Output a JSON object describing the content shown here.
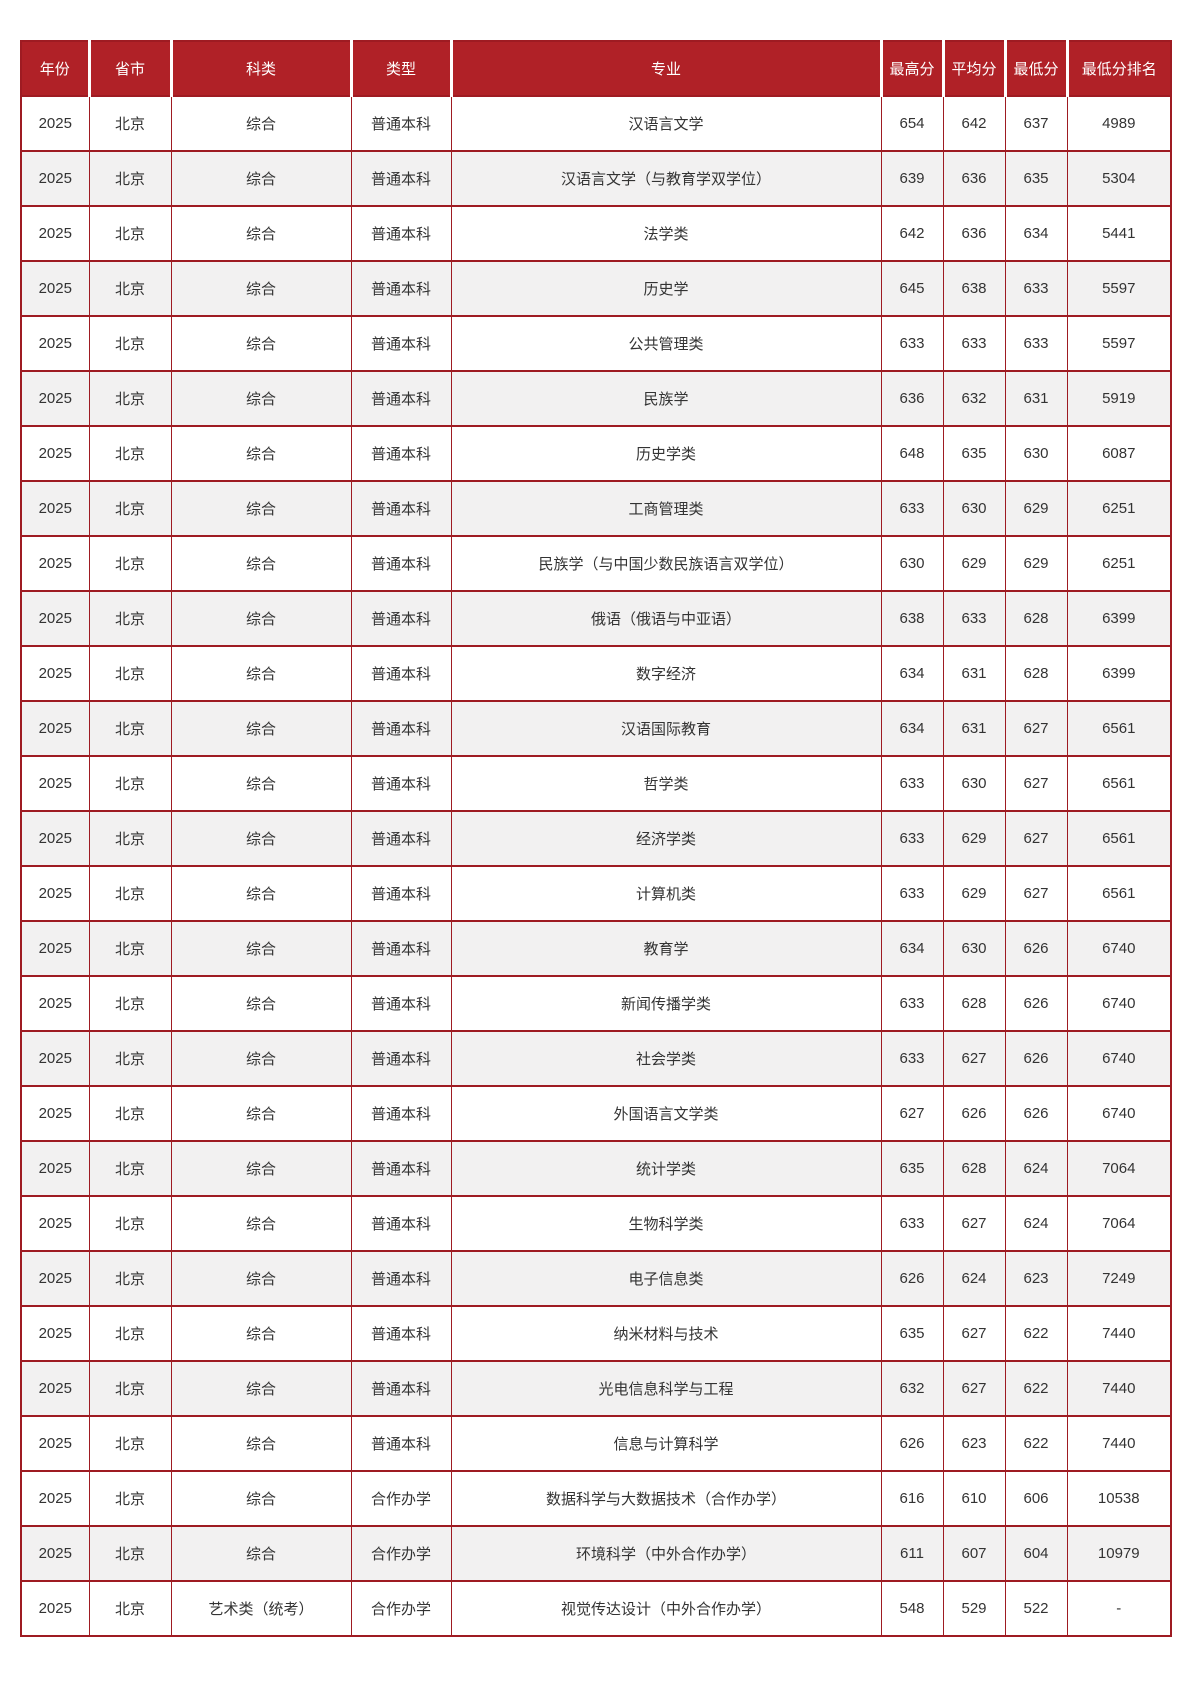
{
  "table": {
    "colors": {
      "header_bg": "#b02127",
      "header_text": "#ffffff",
      "border": "#9e1b22",
      "stripe": "#f2f1f1",
      "text": "#333333",
      "page_bg": "#ffffff"
    },
    "columns": [
      {
        "key": "year",
        "label": "年份"
      },
      {
        "key": "province",
        "label": "省市"
      },
      {
        "key": "category",
        "label": "科类"
      },
      {
        "key": "type",
        "label": "类型"
      },
      {
        "key": "major",
        "label": "专业"
      },
      {
        "key": "max_score",
        "label": "最高分"
      },
      {
        "key": "avg_score",
        "label": "平均分"
      },
      {
        "key": "min_score",
        "label": "最低分"
      },
      {
        "key": "min_rank",
        "label": "最低分排名"
      }
    ],
    "rows": [
      {
        "year": "2025",
        "province": "北京",
        "category": "综合",
        "type": "普通本科",
        "major": "汉语言文学",
        "max_score": "654",
        "avg_score": "642",
        "min_score": "637",
        "min_rank": "4989",
        "shaded": false
      },
      {
        "year": "2025",
        "province": "北京",
        "category": "综合",
        "type": "普通本科",
        "major": "汉语言文学（与教育学双学位）",
        "max_score": "639",
        "avg_score": "636",
        "min_score": "635",
        "min_rank": "5304",
        "shaded": true
      },
      {
        "year": "2025",
        "province": "北京",
        "category": "综合",
        "type": "普通本科",
        "major": "法学类",
        "max_score": "642",
        "avg_score": "636",
        "min_score": "634",
        "min_rank": "5441",
        "shaded": false
      },
      {
        "year": "2025",
        "province": "北京",
        "category": "综合",
        "type": "普通本科",
        "major": "历史学",
        "max_score": "645",
        "avg_score": "638",
        "min_score": "633",
        "min_rank": "5597",
        "shaded": true
      },
      {
        "year": "2025",
        "province": "北京",
        "category": "综合",
        "type": "普通本科",
        "major": "公共管理类",
        "max_score": "633",
        "avg_score": "633",
        "min_score": "633",
        "min_rank": "5597",
        "shaded": false
      },
      {
        "year": "2025",
        "province": "北京",
        "category": "综合",
        "type": "普通本科",
        "major": "民族学",
        "max_score": "636",
        "avg_score": "632",
        "min_score": "631",
        "min_rank": "5919",
        "shaded": true
      },
      {
        "year": "2025",
        "province": "北京",
        "category": "综合",
        "type": "普通本科",
        "major": "历史学类",
        "max_score": "648",
        "avg_score": "635",
        "min_score": "630",
        "min_rank": "6087",
        "shaded": false
      },
      {
        "year": "2025",
        "province": "北京",
        "category": "综合",
        "type": "普通本科",
        "major": "工商管理类",
        "max_score": "633",
        "avg_score": "630",
        "min_score": "629",
        "min_rank": "6251",
        "shaded": true
      },
      {
        "year": "2025",
        "province": "北京",
        "category": "综合",
        "type": "普通本科",
        "major": "民族学（与中国少数民族语言双学位）",
        "max_score": "630",
        "avg_score": "629",
        "min_score": "629",
        "min_rank": "6251",
        "shaded": false
      },
      {
        "year": "2025",
        "province": "北京",
        "category": "综合",
        "type": "普通本科",
        "major": "俄语（俄语与中亚语）",
        "max_score": "638",
        "avg_score": "633",
        "min_score": "628",
        "min_rank": "6399",
        "shaded": true
      },
      {
        "year": "2025",
        "province": "北京",
        "category": "综合",
        "type": "普通本科",
        "major": "数字经济",
        "max_score": "634",
        "avg_score": "631",
        "min_score": "628",
        "min_rank": "6399",
        "shaded": false
      },
      {
        "year": "2025",
        "province": "北京",
        "category": "综合",
        "type": "普通本科",
        "major": "汉语国际教育",
        "max_score": "634",
        "avg_score": "631",
        "min_score": "627",
        "min_rank": "6561",
        "shaded": true
      },
      {
        "year": "2025",
        "province": "北京",
        "category": "综合",
        "type": "普通本科",
        "major": "哲学类",
        "max_score": "633",
        "avg_score": "630",
        "min_score": "627",
        "min_rank": "6561",
        "shaded": false
      },
      {
        "year": "2025",
        "province": "北京",
        "category": "综合",
        "type": "普通本科",
        "major": "经济学类",
        "max_score": "633",
        "avg_score": "629",
        "min_score": "627",
        "min_rank": "6561",
        "shaded": true
      },
      {
        "year": "2025",
        "province": "北京",
        "category": "综合",
        "type": "普通本科",
        "major": "计算机类",
        "max_score": "633",
        "avg_score": "629",
        "min_score": "627",
        "min_rank": "6561",
        "shaded": false
      },
      {
        "year": "2025",
        "province": "北京",
        "category": "综合",
        "type": "普通本科",
        "major": "教育学",
        "max_score": "634",
        "avg_score": "630",
        "min_score": "626",
        "min_rank": "6740",
        "shaded": true
      },
      {
        "year": "2025",
        "province": "北京",
        "category": "综合",
        "type": "普通本科",
        "major": "新闻传播学类",
        "max_score": "633",
        "avg_score": "628",
        "min_score": "626",
        "min_rank": "6740",
        "shaded": false
      },
      {
        "year": "2025",
        "province": "北京",
        "category": "综合",
        "type": "普通本科",
        "major": "社会学类",
        "max_score": "633",
        "avg_score": "627",
        "min_score": "626",
        "min_rank": "6740",
        "shaded": true
      },
      {
        "year": "2025",
        "province": "北京",
        "category": "综合",
        "type": "普通本科",
        "major": "外国语言文学类",
        "max_score": "627",
        "avg_score": "626",
        "min_score": "626",
        "min_rank": "6740",
        "shaded": false
      },
      {
        "year": "2025",
        "province": "北京",
        "category": "综合",
        "type": "普通本科",
        "major": "统计学类",
        "max_score": "635",
        "avg_score": "628",
        "min_score": "624",
        "min_rank": "7064",
        "shaded": true
      },
      {
        "year": "2025",
        "province": "北京",
        "category": "综合",
        "type": "普通本科",
        "major": "生物科学类",
        "max_score": "633",
        "avg_score": "627",
        "min_score": "624",
        "min_rank": "7064",
        "shaded": false
      },
      {
        "year": "2025",
        "province": "北京",
        "category": "综合",
        "type": "普通本科",
        "major": "电子信息类",
        "max_score": "626",
        "avg_score": "624",
        "min_score": "623",
        "min_rank": "7249",
        "shaded": true
      },
      {
        "year": "2025",
        "province": "北京",
        "category": "综合",
        "type": "普通本科",
        "major": "纳米材料与技术",
        "max_score": "635",
        "avg_score": "627",
        "min_score": "622",
        "min_rank": "7440",
        "shaded": false
      },
      {
        "year": "2025",
        "province": "北京",
        "category": "综合",
        "type": "普通本科",
        "major": "光电信息科学与工程",
        "max_score": "632",
        "avg_score": "627",
        "min_score": "622",
        "min_rank": "7440",
        "shaded": true
      },
      {
        "year": "2025",
        "province": "北京",
        "category": "综合",
        "type": "普通本科",
        "major": "信息与计算科学",
        "max_score": "626",
        "avg_score": "623",
        "min_score": "622",
        "min_rank": "7440",
        "shaded": false
      },
      {
        "year": "2025",
        "province": "北京",
        "category": "综合",
        "type": "合作办学",
        "major": "数据科学与大数据技术（合作办学）",
        "max_score": "616",
        "avg_score": "610",
        "min_score": "606",
        "min_rank": "10538",
        "shaded": false
      },
      {
        "year": "2025",
        "province": "北京",
        "category": "综合",
        "type": "合作办学",
        "major": "环境科学（中外合作办学）",
        "max_score": "611",
        "avg_score": "607",
        "min_score": "604",
        "min_rank": "10979",
        "shaded": true
      },
      {
        "year": "2025",
        "province": "北京",
        "category": "艺术类（统考）",
        "type": "合作办学",
        "major": "视觉传达设计（中外合作办学）",
        "max_score": "548",
        "avg_score": "529",
        "min_score": "522",
        "min_rank": "-",
        "shaded": false
      }
    ]
  }
}
